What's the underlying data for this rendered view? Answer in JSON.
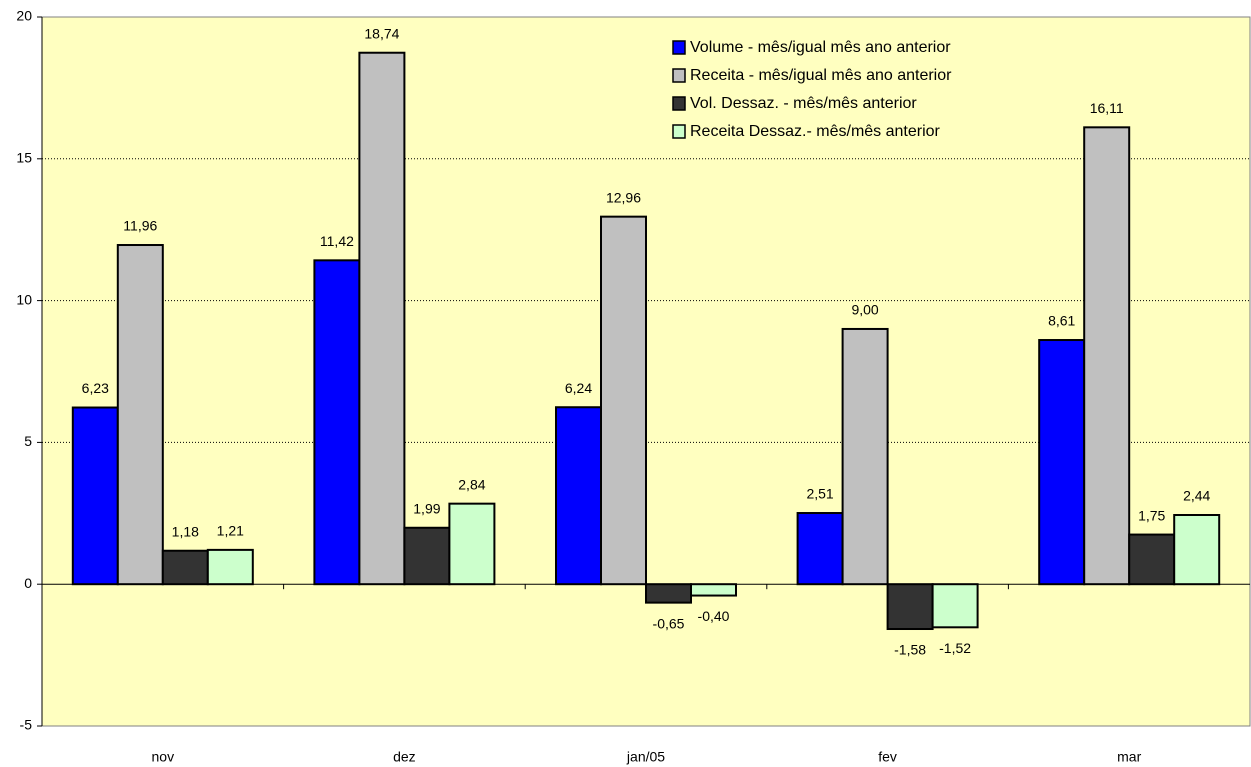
{
  "chart_data": {
    "type": "bar",
    "categories": [
      "nov",
      "dez",
      "jan/05",
      "fev",
      "mar"
    ],
    "series": [
      {
        "name": "Volume - mês/igual mês ano anterior",
        "color": "#0000ff",
        "values": [
          6.23,
          11.42,
          6.24,
          2.51,
          8.61
        ],
        "value_labels": [
          "6,23",
          "11,42",
          "6,24",
          "2,51",
          "8,61"
        ]
      },
      {
        "name": "Receita - mês/igual mês ano anterior",
        "color": "#c0c0c0",
        "values": [
          11.96,
          18.74,
          12.96,
          9.0,
          16.11
        ],
        "value_labels": [
          "11,96",
          "18,74",
          "12,96",
          "9,00",
          "16,11"
        ]
      },
      {
        "name": "Vol. Dessaz. - mês/mês anterior",
        "color": "#333333",
        "values": [
          1.18,
          1.99,
          -0.65,
          -1.58,
          1.75
        ],
        "value_labels": [
          "1,18",
          "1,99",
          "-0,65",
          "-1,58",
          "1,75"
        ]
      },
      {
        "name": "Receita Dessaz.- mês/mês anterior",
        "color": "#ccffcc",
        "values": [
          1.21,
          2.84,
          -0.4,
          -1.52,
          2.44
        ],
        "value_labels": [
          "1,21",
          "2,84",
          "-0,40",
          "-1,52",
          "2,44"
        ]
      }
    ],
    "ylim": [
      -5,
      20
    ],
    "yticks": [
      -5,
      0,
      5,
      10,
      15,
      20
    ],
    "grid": true,
    "legend": "top-right"
  }
}
